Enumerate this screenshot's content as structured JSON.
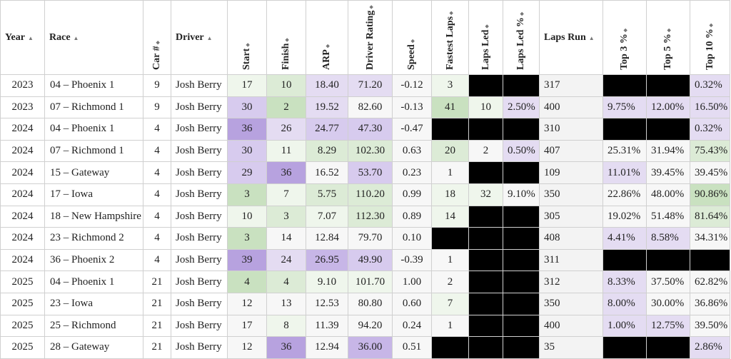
{
  "columns": [
    {
      "label": "Year",
      "sort": "▲"
    },
    {
      "label": "Race",
      "sort": "▲"
    },
    {
      "label": "Car #",
      "sort": "◆"
    },
    {
      "label": "Driver",
      "sort": "▲"
    },
    {
      "label": "Start",
      "sort": "◆"
    },
    {
      "label": "Finish",
      "sort": "◆"
    },
    {
      "label": "ARP",
      "sort": "◆"
    },
    {
      "label": "Driver Rating",
      "sort": "◆"
    },
    {
      "label": "Speed",
      "sort": "◆"
    },
    {
      "label": "Fastest Laps",
      "sort": "◆"
    },
    {
      "label": "Laps Led",
      "sort": "◆"
    },
    {
      "label": "Laps Led %",
      "sort": "◆"
    },
    {
      "label": "Laps Run",
      "sort": "▲"
    },
    {
      "label": "Top 3 %",
      "sort": "◆"
    },
    {
      "label": "Top 5 %",
      "sort": "◆"
    },
    {
      "label": "Top 10 %",
      "sort": "◆"
    }
  ],
  "rows": [
    [
      "2023",
      "04 – Phoenix 1",
      "9",
      "Josh Berry",
      "17",
      "10",
      "18.40",
      "71.20",
      "-0.12",
      "3",
      "",
      "",
      "317",
      "",
      "",
      "0.32%"
    ],
    [
      "2023",
      "07 – Richmond 1",
      "9",
      "Josh Berry",
      "30",
      "2",
      "19.52",
      "82.60",
      "-0.13",
      "41",
      "10",
      "2.50%",
      "400",
      "9.75%",
      "12.00%",
      "16.50%"
    ],
    [
      "2024",
      "04 – Phoenix 1",
      "4",
      "Josh Berry",
      "36",
      "26",
      "24.77",
      "47.30",
      "-0.47",
      "",
      "",
      "",
      "310",
      "",
      "",
      "0.32%"
    ],
    [
      "2024",
      "07 – Richmond 1",
      "4",
      "Josh Berry",
      "30",
      "11",
      "8.29",
      "102.30",
      "0.63",
      "20",
      "2",
      "0.50%",
      "407",
      "25.31%",
      "31.94%",
      "75.43%"
    ],
    [
      "2024",
      "15 – Gateway",
      "4",
      "Josh Berry",
      "29",
      "36",
      "16.52",
      "53.70",
      "0.23",
      "1",
      "",
      "",
      "109",
      "11.01%",
      "39.45%",
      "39.45%"
    ],
    [
      "2024",
      "17 – Iowa",
      "4",
      "Josh Berry",
      "3",
      "7",
      "5.75",
      "110.20",
      "0.99",
      "18",
      "32",
      "9.10%",
      "350",
      "22.86%",
      "48.00%",
      "90.86%"
    ],
    [
      "2024",
      "18 – New Hampshire",
      "4",
      "Josh Berry",
      "10",
      "3",
      "7.07",
      "112.30",
      "0.89",
      "14",
      "",
      "",
      "305",
      "19.02%",
      "51.48%",
      "81.64%"
    ],
    [
      "2024",
      "23 – Richmond 2",
      "4",
      "Josh Berry",
      "3",
      "14",
      "12.84",
      "79.70",
      "0.10",
      "",
      "",
      "",
      "408",
      "4.41%",
      "8.58%",
      "34.31%"
    ],
    [
      "2024",
      "36 – Phoenix 2",
      "4",
      "Josh Berry",
      "39",
      "24",
      "26.95",
      "49.90",
      "-0.39",
      "1",
      "",
      "",
      "311",
      "",
      "",
      ""
    ],
    [
      "2025",
      "04 – Phoenix 1",
      "21",
      "Josh Berry",
      "4",
      "4",
      "9.10",
      "101.70",
      "1.00",
      "2",
      "",
      "",
      "312",
      "8.33%",
      "37.50%",
      "62.82%"
    ],
    [
      "2025",
      "23 – Iowa",
      "21",
      "Josh Berry",
      "12",
      "13",
      "12.53",
      "80.80",
      "0.60",
      "7",
      "",
      "",
      "350",
      "8.00%",
      "30.00%",
      "36.86%"
    ],
    [
      "2025",
      "25 – Richmond",
      "21",
      "Josh Berry",
      "17",
      "8",
      "11.39",
      "94.20",
      "0.24",
      "1",
      "",
      "",
      "400",
      "1.00%",
      "12.75%",
      "39.50%"
    ],
    [
      "2025",
      "28 – Gateway",
      "21",
      "Josh Berry",
      "12",
      "36",
      "12.94",
      "36.00",
      "0.51",
      "",
      "",
      "",
      "35",
      "",
      "",
      "2.86%"
    ]
  ],
  "cell_colors": {
    "purple_light": "#e4dcf2",
    "purple_mid": "#d7cbee",
    "purple": "#c7b6e7",
    "purple_dark": "#b7a2df",
    "green_light": "#eff6ec",
    "green_mid": "#dcebd6",
    "green": "#c9e1c0",
    "green_dark": "#b7d7aa",
    "black": "#000000",
    "neutral": "#f7f7f7"
  }
}
